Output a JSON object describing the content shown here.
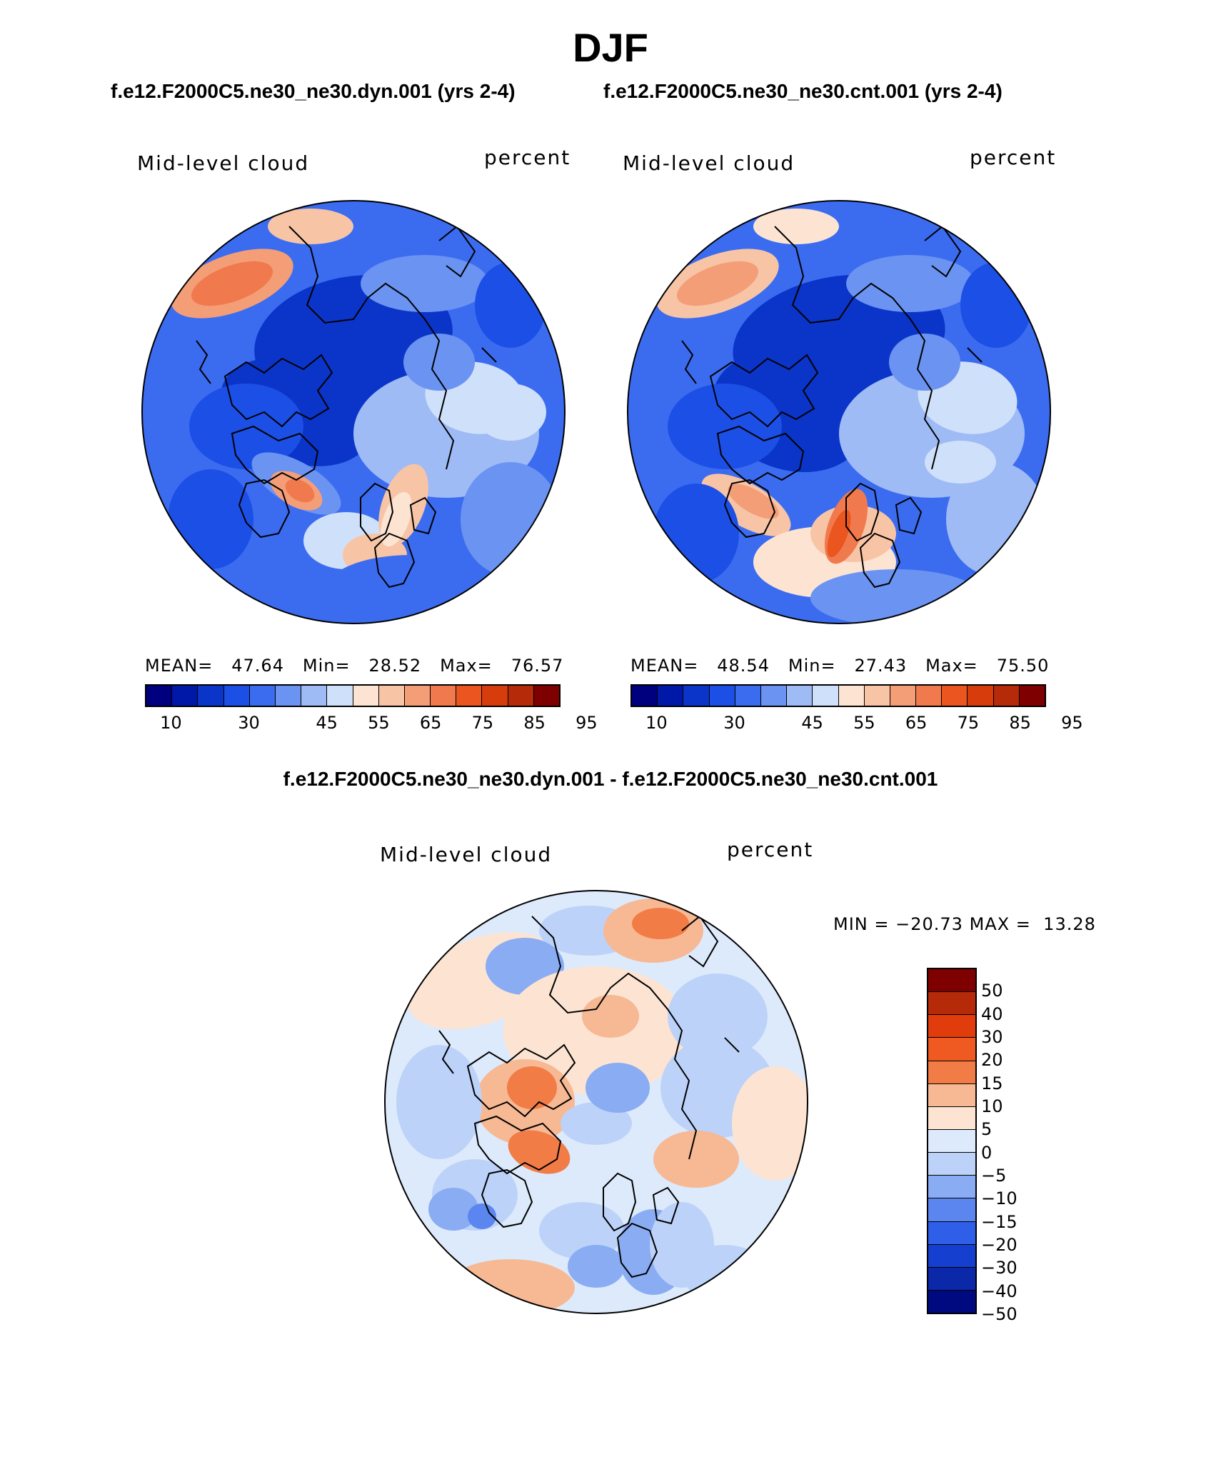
{
  "figure": {
    "title": "DJF",
    "run_titles": [
      "f.e12.F2000C5.ne30_ne30.dyn.001 (yrs 2-4)",
      "f.e12.F2000C5.ne30_ne30.cnt.001 (yrs 2-4)"
    ],
    "diff_title": "f.e12.F2000C5.ne30_ne30.dyn.001 - f.e12.F2000C5.ne30_ne30.cnt.001"
  },
  "chart_data": [
    {
      "type": "heatmap",
      "projection": "north-polar-stereographic",
      "variable": "Mid-level cloud",
      "units": "percent",
      "stats": {
        "mean_label": "MEAN=",
        "mean": "47.64",
        "min_label": "Min=",
        "min": "28.52",
        "max_label": "Max=",
        "max": "76.57"
      },
      "levels": [
        "10",
        "20",
        "25",
        "30",
        "35",
        "40",
        "45",
        "50",
        "55",
        "60",
        "65",
        "70",
        "75",
        "80",
        "85",
        "90",
        "95"
      ],
      "tick_labels": [
        "10",
        "30",
        "45",
        "55",
        "65",
        "75",
        "85",
        "95"
      ],
      "colors": [
        "#00007f",
        "#0018a8",
        "#0a35c8",
        "#1c4fe6",
        "#3b6cf0",
        "#6b93f2",
        "#9ebbf5",
        "#cfe0fa",
        "#fde4d2",
        "#f8c4a6",
        "#f49e78",
        "#f07a4d",
        "#ea5520",
        "#d63c0c",
        "#b52a08",
        "#7f0000"
      ]
    },
    {
      "type": "heatmap",
      "projection": "north-polar-stereographic",
      "variable": "Mid-level cloud",
      "units": "percent",
      "stats": {
        "mean_label": "MEAN=",
        "mean": "48.54",
        "min_label": "Min=",
        "min": "27.43",
        "max_label": "Max=",
        "max": "75.50"
      },
      "levels": [
        "10",
        "20",
        "25",
        "30",
        "35",
        "40",
        "45",
        "50",
        "55",
        "60",
        "65",
        "70",
        "75",
        "80",
        "85",
        "90",
        "95"
      ],
      "tick_labels": [
        "10",
        "30",
        "45",
        "55",
        "65",
        "75",
        "85",
        "95"
      ],
      "colors": [
        "#00007f",
        "#0018a8",
        "#0a35c8",
        "#1c4fe6",
        "#3b6cf0",
        "#6b93f2",
        "#9ebbf5",
        "#cfe0fa",
        "#fde4d2",
        "#f8c4a6",
        "#f49e78",
        "#f07a4d",
        "#ea5520",
        "#d63c0c",
        "#b52a08",
        "#7f0000"
      ]
    },
    {
      "type": "heatmap",
      "projection": "north-polar-stereographic",
      "variable": "Mid-level cloud",
      "units": "percent",
      "stats": {
        "min_label": "MIN =",
        "min": "−20.73",
        "max_label": "MAX =",
        "max": "13.28"
      },
      "tick_labels": [
        "50",
        "40",
        "30",
        "20",
        "15",
        "10",
        "5",
        "0",
        "−5",
        "−10",
        "−15",
        "−20",
        "−30",
        "−40",
        "−50"
      ],
      "colors": [
        "#7f0000",
        "#b52a08",
        "#e03c0c",
        "#ee5a22",
        "#f27c46",
        "#f7b894",
        "#fde4d2",
        "#ddeafb",
        "#bcd2f8",
        "#8aacf3",
        "#5b86ef",
        "#2f5fe9",
        "#1540cf",
        "#0a28a8",
        "#000a80"
      ]
    }
  ]
}
